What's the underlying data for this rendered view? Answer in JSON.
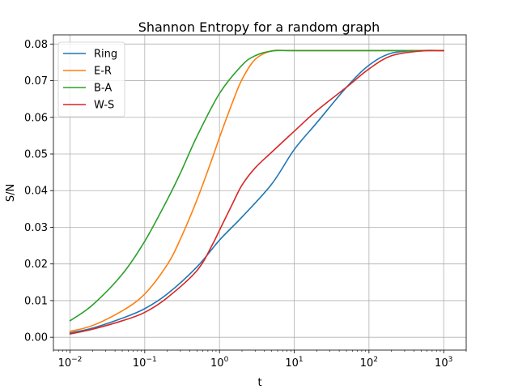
{
  "chart_data": {
    "type": "line",
    "title": "Shannon Entropy for a random graph",
    "xlabel": "t",
    "ylabel": "S/N",
    "xscale": "log",
    "xlim": [
      0.006,
      2000
    ],
    "ylim": [
      -0.0035,
      0.0825
    ],
    "grid": true,
    "legend_position": "top-left",
    "x_ticks": [
      {
        "value": 0.01,
        "base": "10",
        "exp": "−2"
      },
      {
        "value": 0.1,
        "base": "10",
        "exp": "−1"
      },
      {
        "value": 1,
        "base": "10",
        "exp": "0"
      },
      {
        "value": 10,
        "base": "10",
        "exp": "1"
      },
      {
        "value": 100,
        "base": "10",
        "exp": "2"
      },
      {
        "value": 1000,
        "base": "10",
        "exp": "3"
      }
    ],
    "y_ticks": [
      {
        "value": 0.0,
        "label": "0.00"
      },
      {
        "value": 0.01,
        "label": "0.01"
      },
      {
        "value": 0.02,
        "label": "0.02"
      },
      {
        "value": 0.03,
        "label": "0.03"
      },
      {
        "value": 0.04,
        "label": "0.04"
      },
      {
        "value": 0.05,
        "label": "0.05"
      },
      {
        "value": 0.06,
        "label": "0.06"
      },
      {
        "value": 0.07,
        "label": "0.07"
      },
      {
        "value": 0.08,
        "label": "0.08"
      }
    ],
    "series": [
      {
        "name": "Ring",
        "color": "#1f77b4",
        "x": [
          0.01,
          0.02,
          0.05,
          0.1,
          0.2,
          0.5,
          1,
          2,
          5,
          10,
          20,
          50,
          100,
          200,
          500,
          1000
        ],
        "y": [
          0.0012,
          0.0025,
          0.0052,
          0.0078,
          0.0118,
          0.0192,
          0.0265,
          0.0328,
          0.0418,
          0.0512,
          0.0585,
          0.0682,
          0.0742,
          0.0775,
          0.0782,
          0.0782
        ]
      },
      {
        "name": "E-R",
        "color": "#ff7f0e",
        "x": [
          0.01,
          0.02,
          0.05,
          0.1,
          0.2,
          0.3,
          0.5,
          0.8,
          1,
          1.5,
          2,
          3,
          5,
          10,
          100,
          1000
        ],
        "y": [
          0.0016,
          0.0032,
          0.0072,
          0.0118,
          0.0198,
          0.0268,
          0.0375,
          0.0488,
          0.0545,
          0.0642,
          0.0703,
          0.0758,
          0.0781,
          0.0782,
          0.0782,
          0.0782
        ]
      },
      {
        "name": "B-A",
        "color": "#2ca02c",
        "x": [
          0.01,
          0.02,
          0.05,
          0.1,
          0.2,
          0.3,
          0.5,
          1,
          2,
          3,
          5,
          10,
          100,
          1000
        ],
        "y": [
          0.0045,
          0.0088,
          0.0172,
          0.0262,
          0.0375,
          0.0448,
          0.0548,
          0.0665,
          0.0742,
          0.0768,
          0.0781,
          0.0782,
          0.0782,
          0.0782
        ]
      },
      {
        "name": "W-S",
        "color": "#d62728",
        "x": [
          0.01,
          0.02,
          0.05,
          0.1,
          0.2,
          0.5,
          0.8,
          1,
          1.5,
          2,
          3,
          5,
          10,
          20,
          50,
          100,
          200,
          500,
          1000
        ],
        "y": [
          0.0009,
          0.0022,
          0.0045,
          0.0068,
          0.0108,
          0.0182,
          0.0252,
          0.0292,
          0.0365,
          0.0415,
          0.0462,
          0.0505,
          0.0562,
          0.0618,
          0.0682,
          0.0732,
          0.0768,
          0.0781,
          0.0782
        ]
      }
    ]
  }
}
